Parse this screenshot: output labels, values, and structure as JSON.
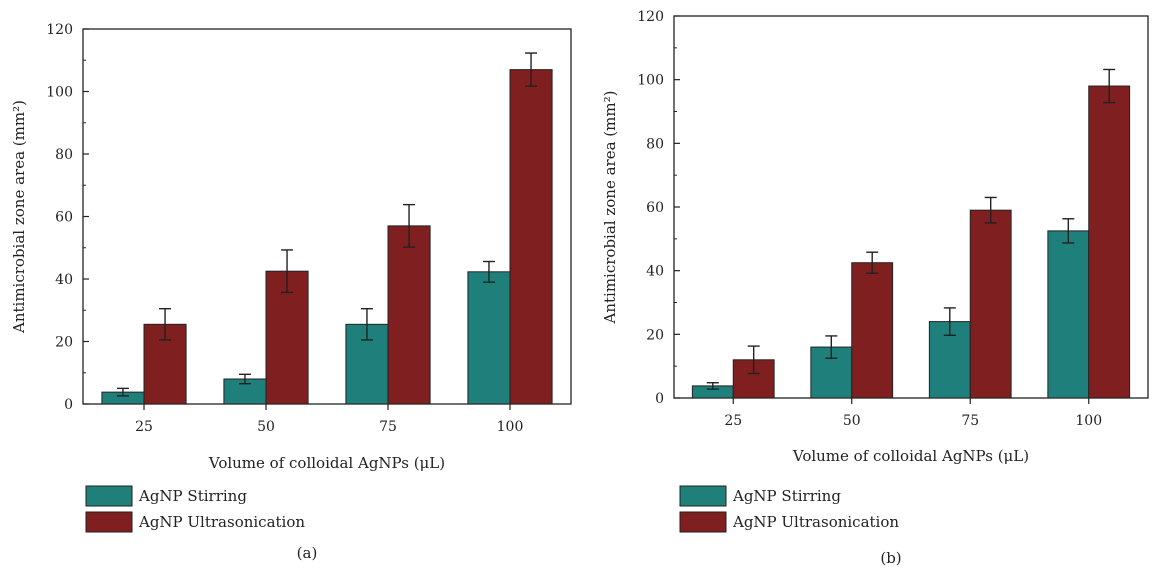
{
  "chart_data": [
    {
      "type": "bar",
      "panel_label": "(a)",
      "categories": [
        "25",
        "50",
        "75",
        "100"
      ],
      "xlabel": "Volume of colloidal AgNPs (μL)",
      "ylabel": "Antimicrobial zone area (mm²)",
      "ylim": [
        0,
        120
      ],
      "yticks": [
        0,
        20,
        40,
        60,
        80,
        100,
        120
      ],
      "legend_position": "below",
      "series": [
        {
          "name": "AgNP Stirring",
          "color": "#1e7f7b",
          "values": [
            3.8,
            8.0,
            25.5,
            42.3
          ],
          "errors": [
            1.2,
            1.5,
            5.0,
            3.3
          ]
        },
        {
          "name": "AgNP Ultrasonication",
          "color": "#7f1f1f",
          "values": [
            25.5,
            42.5,
            57.0,
            107.0
          ],
          "errors": [
            5.0,
            6.8,
            6.8,
            5.3
          ]
        }
      ]
    },
    {
      "type": "bar",
      "panel_label": "(b)",
      "categories": [
        "25",
        "50",
        "75",
        "100"
      ],
      "xlabel": "Volume of colloidal AgNPs (μL)",
      "ylabel": "Antimicrobial zone area (mm²)",
      "ylim": [
        0,
        120
      ],
      "yticks": [
        0,
        20,
        40,
        60,
        80,
        100,
        120
      ],
      "legend_position": "below",
      "series": [
        {
          "name": "AgNP Stirring",
          "color": "#1e7f7b",
          "values": [
            3.8,
            16.0,
            24.0,
            52.5
          ],
          "errors": [
            1.0,
            3.5,
            4.3,
            3.8
          ]
        },
        {
          "name": "AgNP Ultrasonication",
          "color": "#7f1f1f",
          "values": [
            12.0,
            42.5,
            59.0,
            98.0
          ],
          "errors": [
            4.3,
            3.3,
            4.0,
            5.2
          ]
        }
      ]
    }
  ]
}
